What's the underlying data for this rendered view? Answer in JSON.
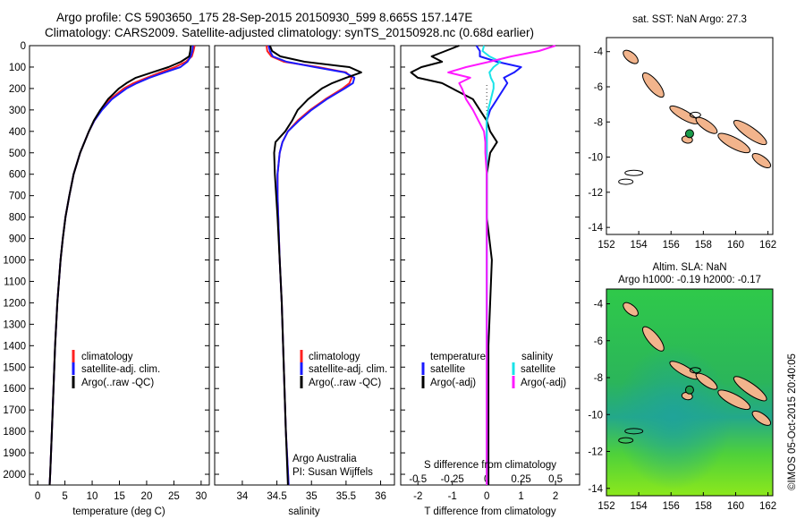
{
  "header": {
    "line1": "Argo profile: CS 5903650_175 28-Sep-2015 20150930_599 8.665S 157.147E",
    "line2": "Climatology: CARS2009. Satellite-adjusted climatology: synTS_20150928.nc (0.68d earlier)"
  },
  "stamp": "©IMOS 05-Oct-2015 20:40:05",
  "colors": {
    "climatology": "#ff2020",
    "satellite": "#1a1aff",
    "argo": "#000000",
    "salinity_satellite": "#19e3e8",
    "salinity_argo": "#ff19ff",
    "land": "#f2b48c",
    "float_marker": "#1a9a4a"
  },
  "depth_axis": {
    "range": [
      0,
      2050
    ],
    "ticks": [
      "0",
      "100",
      "200",
      "300",
      "400",
      "500",
      "600",
      "700",
      "800",
      "900",
      "1000",
      "1100",
      "1200",
      "1300",
      "1400",
      "1500",
      "1600",
      "1700",
      "1800",
      "1900",
      "2000"
    ]
  },
  "legend_temperature": [
    "climatology",
    "satellite-adj. clim.",
    "Argo(..raw -QC)"
  ],
  "legend_salinity": [
    "climatology",
    "satellite-adj. clim.",
    "Argo(..raw -QC)"
  ],
  "legend_difference": {
    "temperature_head": "temperature",
    "salinity_head": "salinity",
    "items": [
      "satellite",
      "Argo(-adj)",
      "satellite",
      "Argo(-adj)"
    ]
  },
  "credit": {
    "line1": "Argo Australia",
    "line2": "PI: Susan Wijffels"
  },
  "map_sst": {
    "title": "sat. SST: NaN Argo: 27.3"
  },
  "map_sla": {
    "title_line1": "Altim. SLA: NaN",
    "title_line2": "Argo h1000: -0.19 h2000: -0.17"
  },
  "map_axes": {
    "lon": [
      152,
      154,
      156,
      158,
      160,
      162
    ],
    "lat": [
      -4,
      -6,
      -8,
      -10,
      -12,
      -14
    ],
    "lon_labels": [
      "152",
      "154",
      "156",
      "158",
      "160",
      "162"
    ],
    "lat_labels": [
      "-4",
      "-6",
      "-8",
      "-10",
      "-12",
      "-14"
    ]
  },
  "float_position": {
    "lon": 157.147,
    "lat": -8.665
  },
  "chart_data": [
    {
      "type": "line",
      "xlabel": "temperature (deg C)",
      "ylabel": "",
      "xlim": [
        -1.5,
        31.5
      ],
      "ylim": [
        2050,
        0
      ],
      "xticks": [
        0,
        5,
        10,
        15,
        20,
        25,
        30
      ],
      "xtick_labels": [
        "0",
        "5",
        "10",
        "15",
        "20",
        "25",
        "30"
      ],
      "depth": [
        0,
        25,
        50,
        75,
        100,
        125,
        150,
        175,
        200,
        250,
        300,
        350,
        400,
        500,
        600,
        700,
        800,
        900,
        1000,
        1200,
        1400,
        1600,
        1800,
        2000,
        2050
      ],
      "series": [
        {
          "name": "climatology",
          "values": [
            28.8,
            28.6,
            28.3,
            27.2,
            25.2,
            22.5,
            20.0,
            17.6,
            15.8,
            13.3,
            11.7,
            10.4,
            9.4,
            7.8,
            6.6,
            5.8,
            5.1,
            4.6,
            4.2,
            3.6,
            3.2,
            2.9,
            2.6,
            2.3,
            2.2
          ]
        },
        {
          "name": "satellite-adj. clim.",
          "values": [
            28.5,
            28.4,
            28.1,
            27.5,
            26.2,
            23.3,
            20.5,
            18.2,
            16.3,
            13.6,
            11.8,
            10.4,
            9.4,
            7.8,
            6.6,
            5.8,
            5.1,
            4.6,
            4.2,
            3.6,
            3.2,
            2.9,
            2.6,
            2.3,
            2.2
          ]
        },
        {
          "name": "Argo(..raw -QC)",
          "values": [
            28.1,
            28.0,
            27.8,
            26.3,
            24.0,
            21.0,
            18.0,
            16.3,
            14.9,
            12.9,
            11.5,
            10.3,
            9.4,
            7.8,
            6.6,
            5.8,
            5.1,
            4.6,
            4.2,
            3.6,
            3.2,
            2.9,
            2.6,
            2.3,
            2.2
          ]
        }
      ]
    },
    {
      "type": "line",
      "xlabel": "salinity",
      "ylabel": "",
      "xlim": [
        33.6,
        36.2
      ],
      "ylim": [
        2050,
        0
      ],
      "xticks": [
        34,
        34.5,
        35,
        35.5,
        36
      ],
      "xtick_labels": [
        "34",
        "34.5",
        "35",
        "35.5",
        "36"
      ],
      "depth": [
        0,
        25,
        50,
        75,
        100,
        125,
        150,
        175,
        200,
        250,
        300,
        350,
        400,
        450,
        500,
        600,
        700,
        800,
        1000,
        1200,
        1500,
        1800,
        2050
      ],
      "series": [
        {
          "name": "climatology",
          "values": [
            34.35,
            34.36,
            34.42,
            34.6,
            35.1,
            35.5,
            35.58,
            35.55,
            35.45,
            35.2,
            34.98,
            34.8,
            34.66,
            34.58,
            34.54,
            34.51,
            34.51,
            34.52,
            34.54,
            34.57,
            34.6,
            34.63,
            34.67
          ]
        },
        {
          "name": "satellite-adj. clim.",
          "values": [
            34.38,
            34.4,
            34.44,
            34.64,
            35.05,
            35.48,
            35.62,
            35.6,
            35.48,
            35.22,
            35.0,
            34.82,
            34.66,
            34.58,
            34.54,
            34.51,
            34.51,
            34.52,
            34.54,
            34.57,
            34.6,
            34.63,
            34.67
          ]
        },
        {
          "name": "Argo(..raw -QC)",
          "values": [
            34.4,
            34.43,
            34.55,
            34.9,
            35.55,
            35.72,
            35.5,
            35.3,
            35.15,
            34.95,
            34.8,
            34.72,
            34.62,
            34.48,
            34.46,
            34.47,
            34.49,
            34.51,
            34.54,
            34.57,
            34.6,
            34.63,
            34.66
          ]
        }
      ]
    },
    {
      "type": "line",
      "xlabel": "T difference from climatology",
      "x2label": "S difference from climatology",
      "ylabel": "",
      "xlim": [
        -2.5,
        2.7
      ],
      "ylim": [
        2050,
        0
      ],
      "xticks": [
        -2,
        -1,
        0,
        1,
        2
      ],
      "xtick_labels": [
        "-2",
        "-1",
        "0",
        "1",
        "2"
      ],
      "x2ticks": [
        -0.5,
        -0.25,
        0,
        0.25,
        0.5
      ],
      "x2tick_labels": [
        "-0.5",
        "-0.25",
        "0",
        "0.25",
        "0.5"
      ],
      "x2lim": [
        -0.625,
        0.675
      ],
      "depth": [
        0,
        25,
        50,
        75,
        100,
        125,
        150,
        175,
        200,
        250,
        300,
        350,
        400,
        450,
        500,
        600,
        800,
        1000,
        1200,
        1400,
        1600,
        1800,
        2000,
        2050
      ],
      "series": [
        {
          "name": "temperature satellite",
          "axis": "T",
          "values": [
            -0.3,
            -0.2,
            -0.2,
            0.3,
            1.0,
            0.8,
            0.5,
            0.6,
            0.5,
            0.3,
            0.1,
            0.0,
            0.0,
            0.0,
            0.0,
            0.0,
            0.0,
            0.0,
            0.0,
            0.0,
            0.0,
            0.0,
            0.0,
            0.0
          ]
        },
        {
          "name": "temperature Argo(-adj)",
          "axis": "T",
          "values": [
            -0.8,
            -1.2,
            -1.6,
            -1.3,
            -1.9,
            -2.2,
            -2.0,
            -1.3,
            -1.0,
            -0.4,
            -0.2,
            0.0,
            0.1,
            0.3,
            0.1,
            0.0,
            0.0,
            0.15,
            0.1,
            0.05,
            0.05,
            0.05,
            0.05,
            0.05
          ]
        },
        {
          "name": "salinity satellite",
          "axis": "S",
          "values": [
            -0.02,
            -0.03,
            0.02,
            0.1,
            0.05,
            0.02,
            0.03,
            0.05,
            0.05,
            0.03,
            0.01,
            0.0,
            0.0,
            0.0,
            0.0,
            0.0,
            0.0,
            0.0,
            0.0,
            0.0,
            0.0,
            0.0,
            0.0,
            0.0
          ]
        },
        {
          "name": "salinity Argo(-adj)",
          "axis": "S",
          "values": [
            0.5,
            0.38,
            0.18,
            0.02,
            -0.15,
            -0.28,
            -0.12,
            -0.2,
            -0.18,
            -0.15,
            -0.1,
            -0.06,
            -0.02,
            -0.01,
            -0.01,
            0.0,
            0.0,
            0.0,
            0.0,
            0.0,
            0.0,
            0.0,
            0.0,
            0.0
          ]
        }
      ]
    }
  ]
}
